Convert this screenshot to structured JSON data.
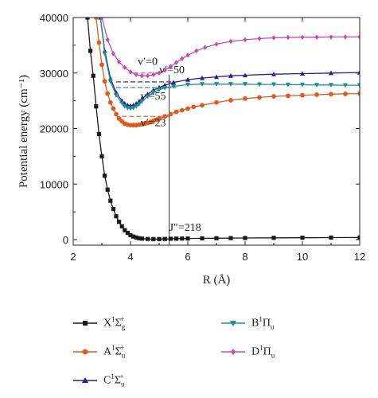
{
  "chart_data": {
    "type": "line",
    "xlabel": "R (Å)",
    "ylabel": "Potential energy (cm⁻¹)",
    "xlim": [
      2,
      12
    ],
    "ylim": [
      -1000,
      40000
    ],
    "x_ticks": [
      2,
      4,
      6,
      8,
      10,
      12
    ],
    "y_ticks": [
      0,
      10000,
      20000,
      30000,
      40000
    ],
    "grid": false,
    "legend_position": "below",
    "series": [
      {
        "name": "X¹Σg⁺",
        "color": "#1a1a1a",
        "marker": "square",
        "x": [
          2.5,
          2.6,
          2.7,
          2.8,
          2.9,
          3.0,
          3.1,
          3.2,
          3.3,
          3.4,
          3.5,
          3.6,
          3.7,
          3.8,
          3.9,
          4.0,
          4.1,
          4.2,
          4.3,
          4.4,
          4.6,
          4.8,
          5.0,
          5.2,
          5.4,
          5.6,
          5.8,
          6.0,
          6.5,
          7.0,
          7.5,
          8.0,
          9.0,
          10.0,
          11.0,
          12.0
        ],
        "y": [
          40000,
          34000,
          29500,
          24000,
          19000,
          15000,
          11500,
          9000,
          7000,
          5500,
          4200,
          3200,
          2400,
          1700,
          1200,
          800,
          550,
          380,
          250,
          180,
          120,
          100,
          100,
          120,
          150,
          170,
          190,
          200,
          230,
          250,
          270,
          290,
          320,
          340,
          360,
          380
        ]
      },
      {
        "name": "A¹Σu⁺",
        "color": "#e05a1c",
        "marker": "circle",
        "x": [
          2.8,
          2.9,
          3.0,
          3.1,
          3.2,
          3.3,
          3.4,
          3.5,
          3.6,
          3.7,
          3.8,
          3.9,
          4.0,
          4.1,
          4.2,
          4.3,
          4.4,
          4.5,
          4.6,
          4.7,
          4.8,
          4.9,
          5.0,
          5.2,
          5.4,
          5.6,
          5.8,
          6.0,
          6.2,
          6.5,
          7.0,
          7.5,
          8.0,
          8.5,
          9.0,
          9.5,
          10.0,
          10.5,
          11.0,
          11.5,
          12.0
        ],
        "y": [
          40000,
          35500,
          31500,
          28500,
          26300,
          24700,
          23600,
          22600,
          21800,
          21300,
          20900,
          20700,
          20600,
          20600,
          20600,
          20700,
          20800,
          20900,
          21000,
          21200,
          21400,
          21600,
          21800,
          22200,
          22600,
          23000,
          23300,
          23600,
          23900,
          24200,
          24700,
          25100,
          25400,
          25600,
          25800,
          25900,
          26000,
          26100,
          26200,
          26250,
          26300
        ]
      },
      {
        "name": "C¹Σu⁺",
        "color": "#2a1f8f",
        "marker": "triangle-up",
        "x": [
          2.95,
          3.1,
          3.3,
          3.5,
          3.7,
          3.8,
          3.9,
          4.0,
          4.1,
          4.2,
          4.3,
          4.4,
          4.6,
          4.8,
          5.0,
          5.2,
          5.5,
          6.0,
          6.5,
          7.0,
          7.5,
          8.0,
          9.0,
          10.0,
          11.0,
          12.0
        ],
        "y": [
          40000,
          34000,
          29000,
          26500,
          25000,
          24500,
          24200,
          24100,
          24200,
          24500,
          24900,
          25400,
          26200,
          26900,
          27400,
          27800,
          28300,
          28800,
          29100,
          29300,
          29500,
          29600,
          29800,
          29900,
          30000,
          30100
        ]
      },
      {
        "name": "B¹Πu",
        "color": "#1e8f8f",
        "marker": "triangle-down",
        "x": [
          2.95,
          3.1,
          3.3,
          3.5,
          3.7,
          3.8,
          3.9,
          4.0,
          4.1,
          4.2,
          4.3,
          4.4,
          4.6,
          4.8,
          5.0,
          5.2,
          5.5,
          6.0,
          6.5,
          7.0,
          7.5,
          8.0,
          8.5,
          9.0,
          9.5,
          10.0,
          10.5,
          11.0,
          11.5,
          12.0
        ],
        "y": [
          40000,
          33500,
          28500,
          26000,
          24600,
          24000,
          23700,
          23600,
          23700,
          24000,
          24400,
          24900,
          25800,
          26500,
          27000,
          27300,
          27600,
          27900,
          28000,
          28000,
          28000,
          28000,
          27950,
          27950,
          27900,
          27900,
          27850,
          27850,
          27800,
          27800
        ]
      },
      {
        "name": "D¹Πu",
        "color": "#c84bb0",
        "marker": "diamond",
        "x": [
          3.0,
          3.2,
          3.4,
          3.6,
          3.8,
          4.0,
          4.2,
          4.4,
          4.6,
          4.8,
          5.0,
          5.2,
          5.4,
          5.6,
          5.8,
          6.0,
          6.3,
          6.6,
          7.0,
          7.5,
          8.0,
          8.5,
          9.0,
          9.5,
          10.0,
          10.5,
          11.0,
          11.5,
          12.0
        ],
        "y": [
          40000,
          36000,
          33500,
          32000,
          31000,
          30200,
          29700,
          29500,
          29500,
          29700,
          30000,
          30500,
          31200,
          31900,
          32600,
          33200,
          34000,
          34600,
          35200,
          35700,
          36000,
          36200,
          36350,
          36400,
          36450,
          36450,
          36500,
          36500,
          36500
        ]
      }
    ],
    "hlines": [
      {
        "label": "v′=0",
        "y": 30000,
        "x0": 4.1,
        "x1": 5.1,
        "color": "#c84bb0"
      },
      {
        "label": "v′=50",
        "y": 28400,
        "x0": 3.5,
        "x1": 5.6,
        "color": "#2a1f8f"
      },
      {
        "label": "v′=55",
        "y": 27400,
        "x0": 3.5,
        "x1": 5.6,
        "color": "#1e8f8f"
      },
      {
        "label": "v′=23",
        "y": 22200,
        "x0": 3.7,
        "x1": 5.4,
        "color": "#e05a1c"
      }
    ],
    "vline": {
      "label": "J″=218",
      "x": 5.35
    },
    "annotations": [
      {
        "text": "v′=0",
        "x": 4.25,
        "y": 31500
      },
      {
        "text": "v′=50",
        "x": 5.0,
        "y": 30000
      },
      {
        "text": "v′=55",
        "x": 4.35,
        "y": 25200
      },
      {
        "text": "v′=23",
        "x": 4.35,
        "y": 20400
      },
      {
        "text": "J″=218",
        "x": 5.35,
        "y": 1600
      }
    ]
  },
  "legend": [
    {
      "name": "X¹Σg⁺",
      "color": "#1a1a1a",
      "marker": "square",
      "main": "X",
      "sup1": "1",
      "sym": "Σ",
      "sub": "g",
      "sup2": "+"
    },
    {
      "name": "B¹Πu",
      "color": "#1e8f8f",
      "marker": "triangle-down",
      "main": "B",
      "sup1": "1",
      "sym": "Π",
      "sub": "u",
      "sup2": ""
    },
    {
      "name": "A¹Σu⁺",
      "color": "#e05a1c",
      "marker": "circle",
      "main": "A",
      "sup1": "1",
      "sym": "Σ",
      "sub": "u",
      "sup2": "+"
    },
    {
      "name": "D¹Πu",
      "color": "#c84bb0",
      "marker": "diamond",
      "main": "D",
      "sup1": "1",
      "sym": "Π",
      "sub": "u",
      "sup2": ""
    },
    {
      "name": "C¹Σu⁺",
      "color": "#2a1f8f",
      "marker": "triangle-up",
      "main": "C",
      "sup1": "1",
      "sym": "Σ",
      "sub": "u",
      "sup2": "+"
    }
  ]
}
